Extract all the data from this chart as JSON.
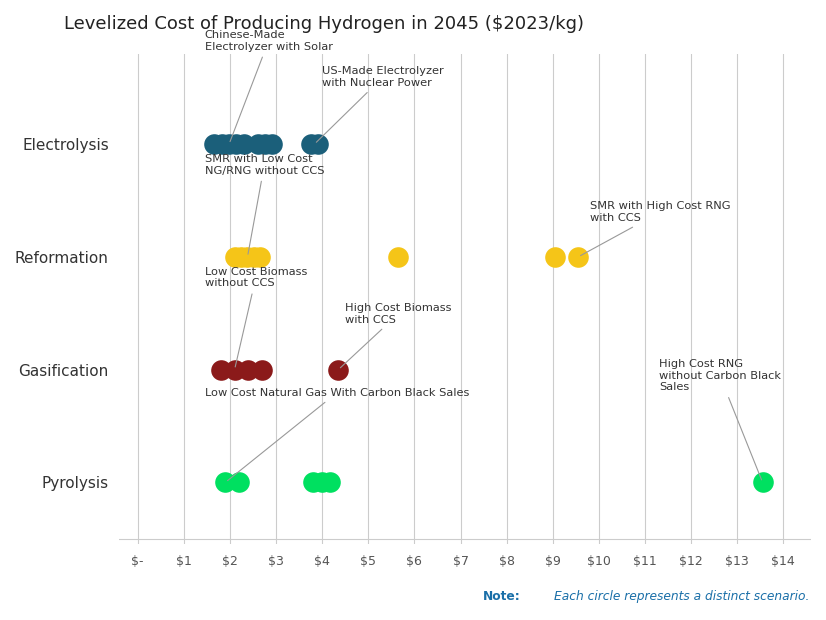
{
  "title": "Levelized Cost of Producing Hydrogen in 2045 ($2023/kg)",
  "title_fontsize": 13,
  "background_color": "#ffffff",
  "categories": [
    "Pyrolysis",
    "Gasification",
    "Reformation",
    "Electrolysis"
  ],
  "y_labels": [
    "Pyrolysis",
    "Gasification",
    "Reformation",
    "Electrolysis"
  ],
  "x_ticks": [
    0,
    1,
    2,
    3,
    4,
    5,
    6,
    7,
    8,
    9,
    10,
    11,
    12,
    13,
    14
  ],
  "x_tick_labels": [
    "$-",
    "$1",
    "$2",
    "$3",
    "$4",
    "$5",
    "$6",
    "$7",
    "$8",
    "$9",
    "$10",
    "$11",
    "$12",
    "$13",
    "$14"
  ],
  "dot_size": 220,
  "data_points": [
    {
      "category": "Electrolysis",
      "x": 1.65,
      "color": "#1b5f7a"
    },
    {
      "category": "Electrolysis",
      "x": 1.82,
      "color": "#1b5f7a"
    },
    {
      "category": "Electrolysis",
      "x": 1.98,
      "color": "#1b5f7a"
    },
    {
      "category": "Electrolysis",
      "x": 2.14,
      "color": "#1b5f7a"
    },
    {
      "category": "Electrolysis",
      "x": 2.3,
      "color": "#1b5f7a"
    },
    {
      "category": "Electrolysis",
      "x": 2.6,
      "color": "#1b5f7a"
    },
    {
      "category": "Electrolysis",
      "x": 2.76,
      "color": "#1b5f7a"
    },
    {
      "category": "Electrolysis",
      "x": 2.92,
      "color": "#1b5f7a"
    },
    {
      "category": "Electrolysis",
      "x": 3.75,
      "color": "#1b5f7a"
    },
    {
      "category": "Electrolysis",
      "x": 3.91,
      "color": "#1b5f7a"
    },
    {
      "category": "Reformation",
      "x": 2.1,
      "color": "#f5c518"
    },
    {
      "category": "Reformation",
      "x": 2.24,
      "color": "#f5c518"
    },
    {
      "category": "Reformation",
      "x": 2.38,
      "color": "#f5c518"
    },
    {
      "category": "Reformation",
      "x": 2.52,
      "color": "#f5c518"
    },
    {
      "category": "Reformation",
      "x": 2.66,
      "color": "#f5c518"
    },
    {
      "category": "Reformation",
      "x": 5.65,
      "color": "#f5c518"
    },
    {
      "category": "Reformation",
      "x": 9.05,
      "color": "#f5c518"
    },
    {
      "category": "Reformation",
      "x": 9.55,
      "color": "#f5c518"
    },
    {
      "category": "Gasification",
      "x": 1.8,
      "color": "#8b1a1a"
    },
    {
      "category": "Gasification",
      "x": 2.1,
      "color": "#8b1a1a"
    },
    {
      "category": "Gasification",
      "x": 2.4,
      "color": "#8b1a1a"
    },
    {
      "category": "Gasification",
      "x": 2.7,
      "color": "#8b1a1a"
    },
    {
      "category": "Gasification",
      "x": 4.35,
      "color": "#8b1a1a"
    },
    {
      "category": "Pyrolysis",
      "x": 1.9,
      "color": "#00e060"
    },
    {
      "category": "Pyrolysis",
      "x": 2.2,
      "color": "#00e060"
    },
    {
      "category": "Pyrolysis",
      "x": 3.8,
      "color": "#00e060"
    },
    {
      "category": "Pyrolysis",
      "x": 4.0,
      "color": "#00e060"
    },
    {
      "category": "Pyrolysis",
      "x": 4.18,
      "color": "#00e060"
    },
    {
      "category": "Pyrolysis",
      "x": 13.55,
      "color": "#00e060"
    }
  ],
  "note_text": "Each circle represents a distinct scenario.",
  "note_bold": "Note:",
  "note_color": "#1a6fa8",
  "grid_color": "#cccccc"
}
